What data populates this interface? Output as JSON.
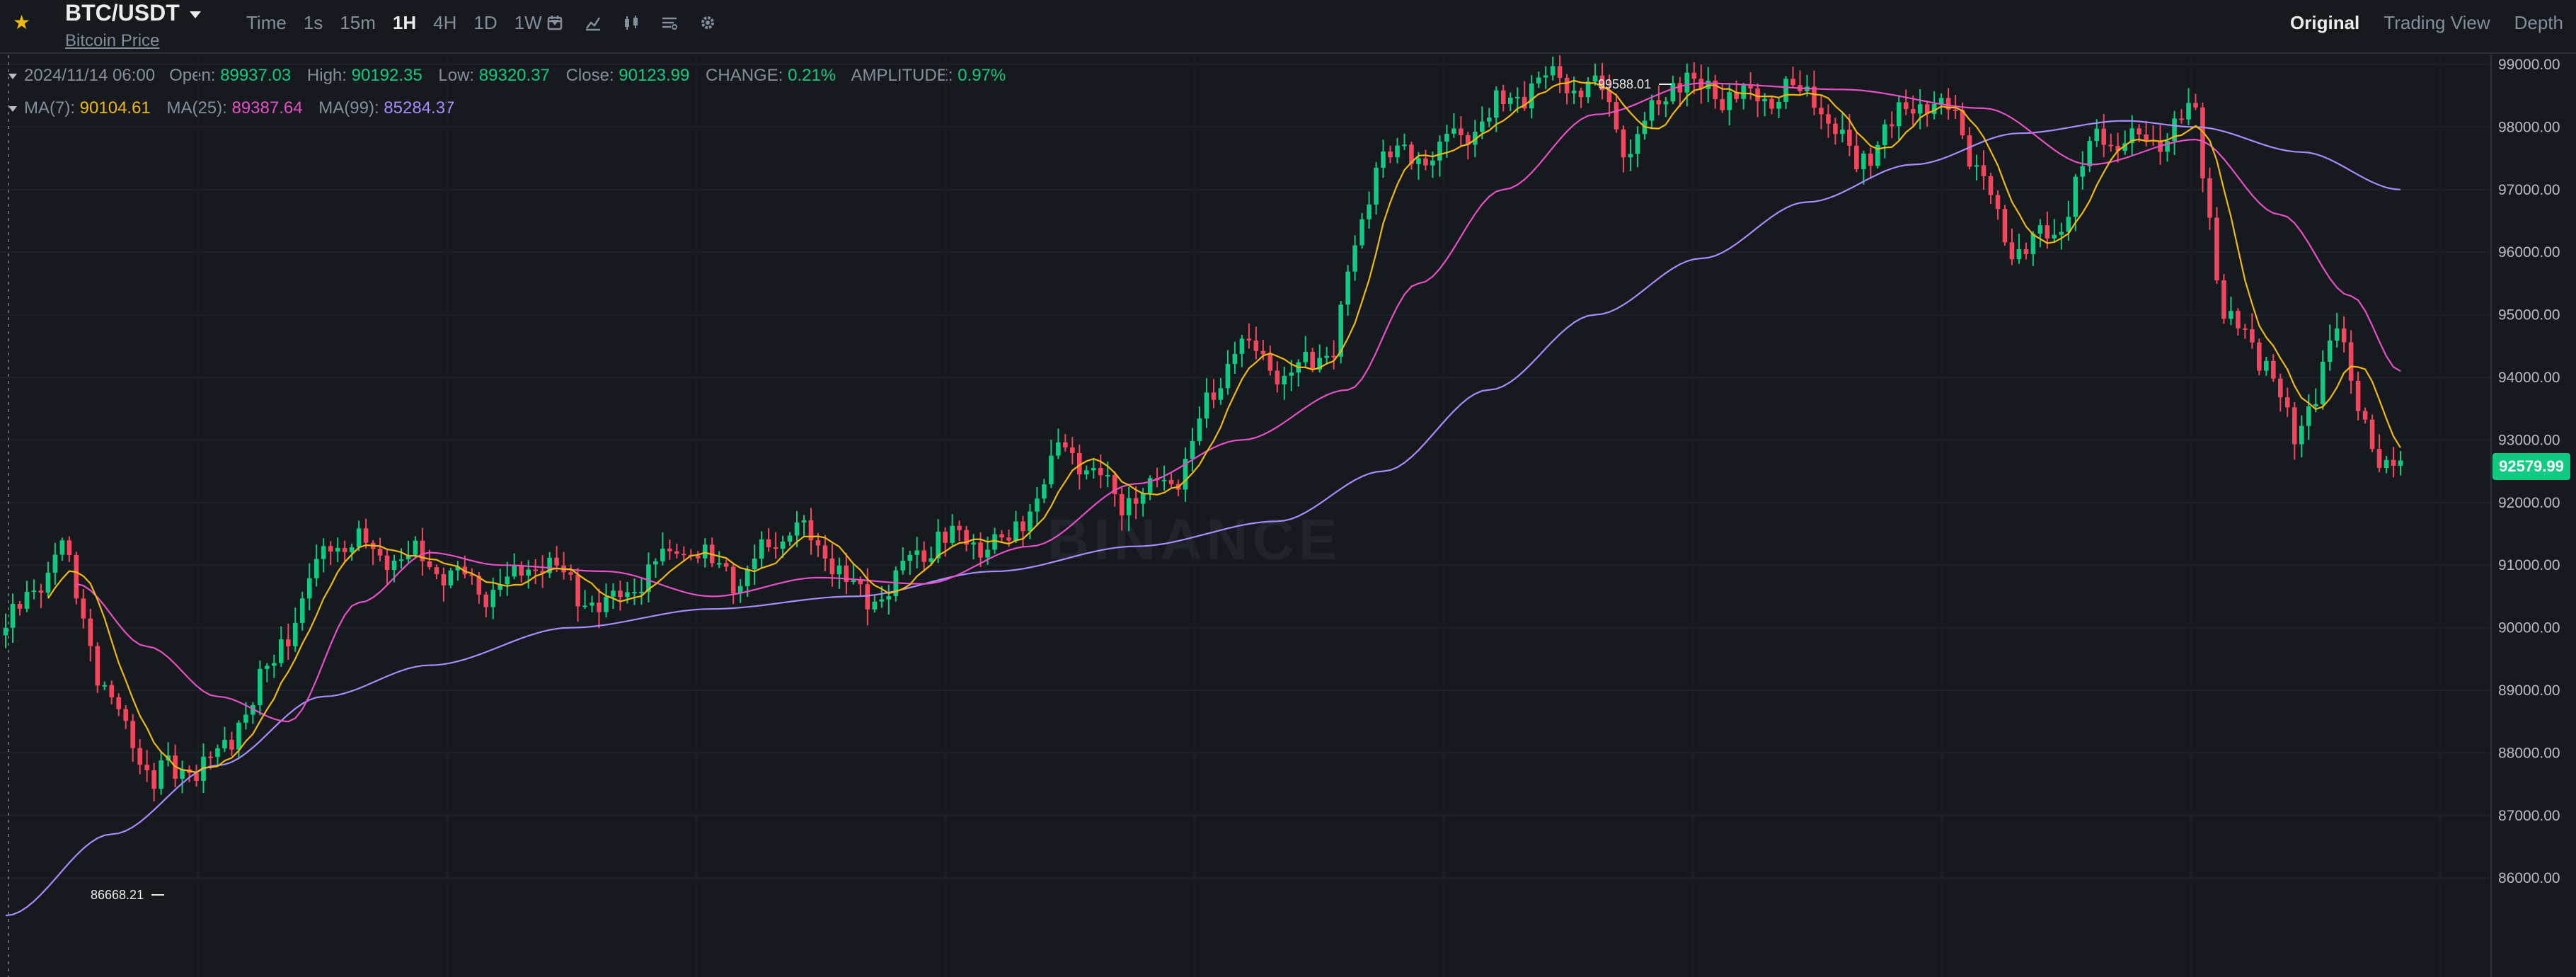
{
  "header": {
    "pair": "BTC/USDT",
    "subtitle": "Bitcoin Price",
    "intervals": [
      {
        "label": "Time",
        "active": false
      },
      {
        "label": "1s",
        "active": false
      },
      {
        "label": "15m",
        "active": false
      },
      {
        "label": "1H",
        "active": true
      },
      {
        "label": "4H",
        "active": false
      },
      {
        "label": "1D",
        "active": false
      },
      {
        "label": "1W",
        "active": false
      }
    ],
    "tool_icons": [
      "calendar-icon",
      "indicator-icon",
      "candle-type-icon",
      "layout-icon",
      "settings-icon"
    ],
    "views": [
      {
        "label": "Original",
        "active": true
      },
      {
        "label": "Trading View",
        "active": false
      },
      {
        "label": "Depth",
        "active": false
      }
    ]
  },
  "ohlc": {
    "date": "2024/11/14 06:00",
    "open_label": "Open:",
    "open": "89937.03",
    "high_label": "High:",
    "high": "90192.35",
    "low_label": "Low:",
    "low": "89320.37",
    "close_label": "Close:",
    "close": "90123.99",
    "change_label": "CHANGE:",
    "change": "0.21%",
    "amplitude_label": "AMPLITUDE:",
    "amplitude": "0.97%"
  },
  "ma": {
    "ma7_label": "MA(7):",
    "ma7": "90104.61",
    "ma25_label": "MA(25):",
    "ma25": "89387.64",
    "ma99_label": "MA(99):",
    "ma99": "85284.37"
  },
  "watermark": "BINANCE",
  "colors": {
    "up": "#0ecb81",
    "down": "#f6465d",
    "ma7": "#f0b90b",
    "ma25": "#e84fc7",
    "ma99": "#a98bff",
    "bg": "#161a1e"
  },
  "chart_data": {
    "type": "candlestick",
    "y_ticks": [
      "99000.00",
      "98000.00",
      "97000.00",
      "96000.00",
      "95000.00",
      "94000.00",
      "93000.00",
      "92000.00",
      "91000.00",
      "90000.00",
      "89000.00",
      "88000.00",
      "87000.00",
      "86000.00"
    ],
    "ylim": [
      85350,
      100150
    ],
    "last_price": "92579.99",
    "high_marker": "99588.01",
    "low_marker": "86668.21",
    "anchors": [
      {
        "i": 0,
        "p": 90000
      },
      {
        "i": 8,
        "p": 91300
      },
      {
        "i": 14,
        "p": 89000
      },
      {
        "i": 21,
        "p": 87600
      },
      {
        "i": 30,
        "p": 87900
      },
      {
        "i": 38,
        "p": 89500
      },
      {
        "i": 46,
        "p": 91400
      },
      {
        "i": 58,
        "p": 91100
      },
      {
        "i": 68,
        "p": 90600
      },
      {
        "i": 76,
        "p": 91000
      },
      {
        "i": 85,
        "p": 90300
      },
      {
        "i": 95,
        "p": 91300
      },
      {
        "i": 104,
        "p": 90800
      },
      {
        "i": 112,
        "p": 91700
      },
      {
        "i": 122,
        "p": 90400
      },
      {
        "i": 132,
        "p": 91500
      },
      {
        "i": 142,
        "p": 91300
      },
      {
        "i": 150,
        "p": 93000
      },
      {
        "i": 158,
        "p": 92000
      },
      {
        "i": 166,
        "p": 92400
      },
      {
        "i": 174,
        "p": 94500
      },
      {
        "i": 182,
        "p": 94000
      },
      {
        "i": 188,
        "p": 94500
      },
      {
        "i": 194,
        "p": 97500
      },
      {
        "i": 202,
        "p": 97600
      },
      {
        "i": 210,
        "p": 98200
      },
      {
        "i": 218,
        "p": 98800
      },
      {
        "i": 226,
        "p": 98600
      },
      {
        "i": 230,
        "p": 97600
      },
      {
        "i": 236,
        "p": 98800
      },
      {
        "i": 244,
        "p": 98500
      },
      {
        "i": 256,
        "p": 98500
      },
      {
        "i": 262,
        "p": 97400
      },
      {
        "i": 270,
        "p": 98400
      },
      {
        "i": 276,
        "p": 98200
      },
      {
        "i": 284,
        "p": 96000
      },
      {
        "i": 290,
        "p": 96300
      },
      {
        "i": 296,
        "p": 97800
      },
      {
        "i": 304,
        "p": 97800
      },
      {
        "i": 310,
        "p": 98200
      },
      {
        "i": 314,
        "p": 95000
      },
      {
        "i": 320,
        "p": 94300
      },
      {
        "i": 324,
        "p": 93000
      },
      {
        "i": 330,
        "p": 94800
      },
      {
        "i": 336,
        "p": 92500
      },
      {
        "i": 339,
        "p": 92580
      }
    ],
    "ma25_points": [
      {
        "i": 10,
        "p": 90700
      },
      {
        "i": 20,
        "p": 89700
      },
      {
        "i": 30,
        "p": 88900
      },
      {
        "i": 40,
        "p": 88500
      },
      {
        "i": 50,
        "p": 90400
      },
      {
        "i": 60,
        "p": 91200
      },
      {
        "i": 70,
        "p": 91000
      },
      {
        "i": 85,
        "p": 90900
      },
      {
        "i": 100,
        "p": 90500
      },
      {
        "i": 115,
        "p": 90800
      },
      {
        "i": 130,
        "p": 90700
      },
      {
        "i": 145,
        "p": 91300
      },
      {
        "i": 160,
        "p": 92300
      },
      {
        "i": 175,
        "p": 93000
      },
      {
        "i": 190,
        "p": 93800
      },
      {
        "i": 200,
        "p": 95500
      },
      {
        "i": 212,
        "p": 97000
      },
      {
        "i": 225,
        "p": 98200
      },
      {
        "i": 240,
        "p": 98700
      },
      {
        "i": 260,
        "p": 98600
      },
      {
        "i": 280,
        "p": 98300
      },
      {
        "i": 295,
        "p": 97400
      },
      {
        "i": 310,
        "p": 97800
      },
      {
        "i": 322,
        "p": 96600
      },
      {
        "i": 332,
        "p": 95300
      },
      {
        "i": 339,
        "p": 94100
      }
    ],
    "ma99_points": [
      {
        "i": 0,
        "p": 85400
      },
      {
        "i": 15,
        "p": 86700
      },
      {
        "i": 30,
        "p": 87800
      },
      {
        "i": 45,
        "p": 88900
      },
      {
        "i": 60,
        "p": 89400
      },
      {
        "i": 80,
        "p": 90000
      },
      {
        "i": 100,
        "p": 90300
      },
      {
        "i": 120,
        "p": 90500
      },
      {
        "i": 140,
        "p": 90900
      },
      {
        "i": 160,
        "p": 91300
      },
      {
        "i": 180,
        "p": 91700
      },
      {
        "i": 195,
        "p": 92500
      },
      {
        "i": 210,
        "p": 93800
      },
      {
        "i": 225,
        "p": 95000
      },
      {
        "i": 240,
        "p": 95900
      },
      {
        "i": 255,
        "p": 96800
      },
      {
        "i": 270,
        "p": 97400
      },
      {
        "i": 285,
        "p": 97900
      },
      {
        "i": 300,
        "p": 98100
      },
      {
        "i": 310,
        "p": 98000
      },
      {
        "i": 325,
        "p": 97600
      },
      {
        "i": 339,
        "p": 97000
      }
    ],
    "candle_count": 340
  }
}
